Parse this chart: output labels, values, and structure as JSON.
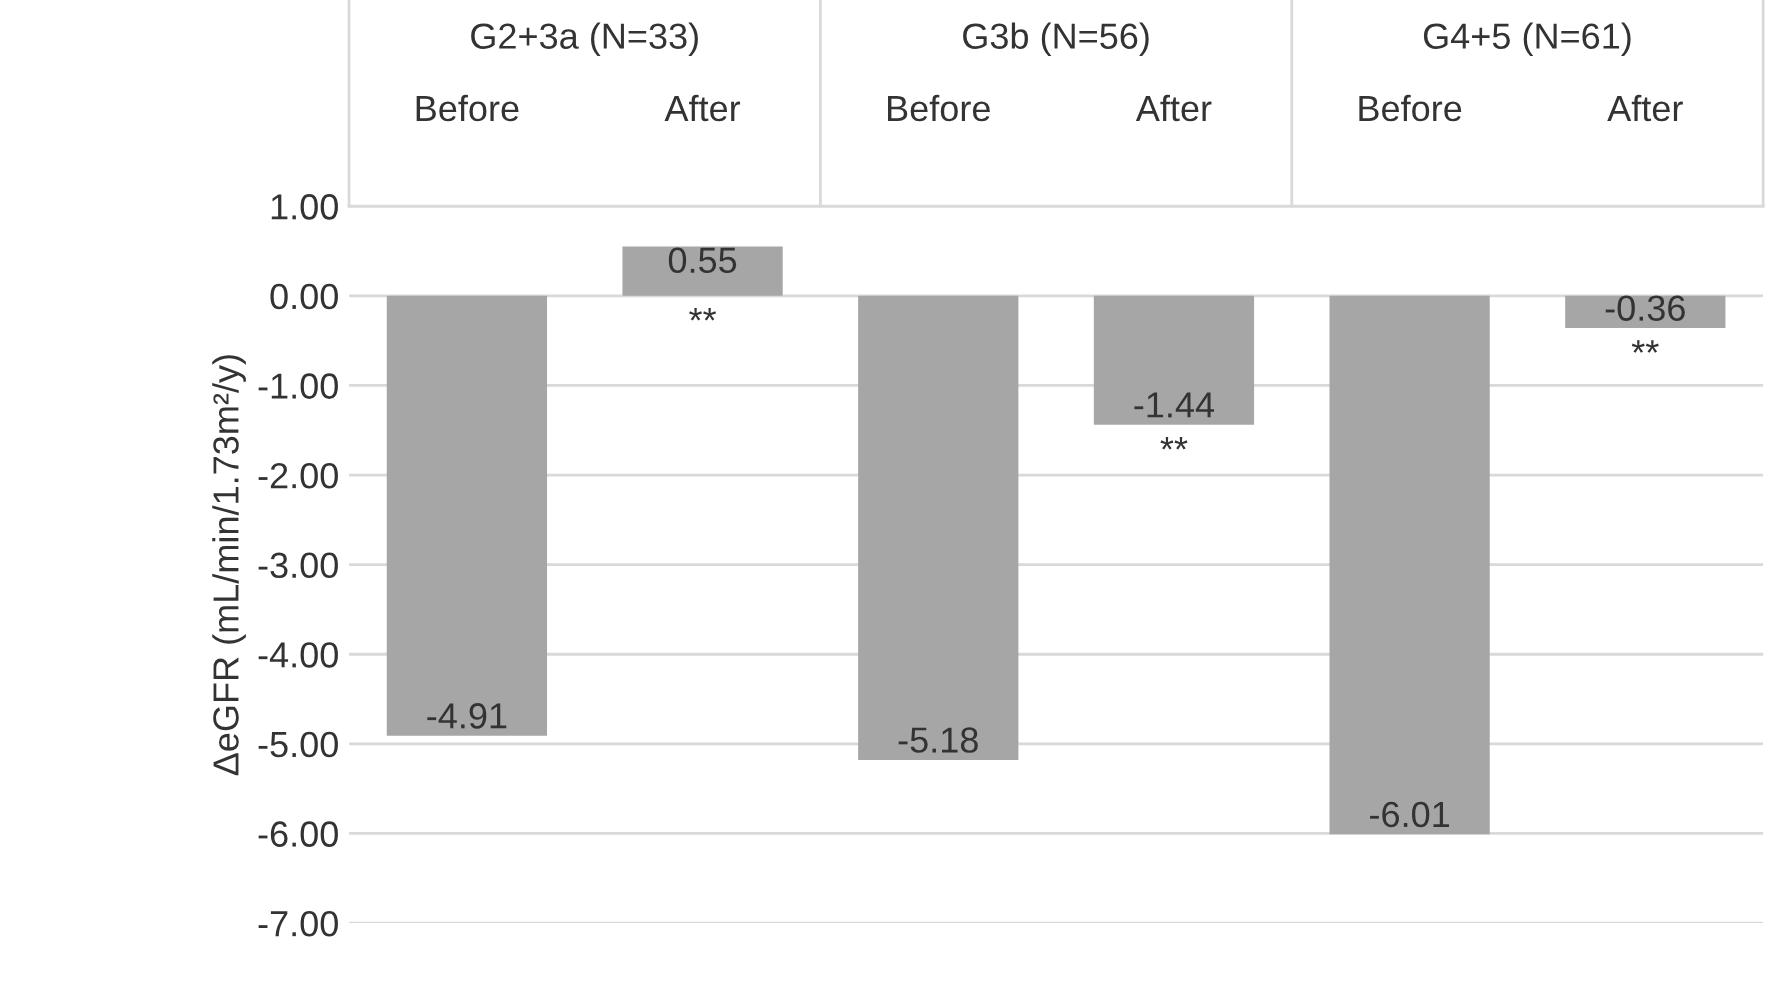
{
  "chart_data": {
    "type": "bar",
    "categories": [
      "Before",
      "After",
      "Before",
      "After",
      "Before",
      "After"
    ],
    "values": [
      -4.91,
      0.55,
      -5.18,
      -1.44,
      -6.01,
      -0.36
    ],
    "color": "#a6a6a6",
    "ylabel": "ΔeGFR (mL/min/1.73m²/y)",
    "ylim": [
      -7,
      1
    ],
    "yticks": [
      {
        "value": 1,
        "label": "1.00"
      },
      {
        "value": 0,
        "label": "0.00"
      },
      {
        "value": -1,
        "label": "-1.00"
      },
      {
        "value": -2,
        "label": "-2.00"
      },
      {
        "value": -3,
        "label": "-3.00"
      },
      {
        "value": -4,
        "label": "-4.00"
      },
      {
        "value": -5,
        "label": "-5.00"
      },
      {
        "value": -6,
        "label": "-6.00"
      },
      {
        "value": -7,
        "label": "-7.00"
      }
    ],
    "grid": "y",
    "data_labels": true,
    "annotations": [
      "G2+3a (N=33)",
      "G3b (N=56)",
      "G4+5 (N=61)",
      "**",
      "**",
      "**"
    ]
  }
}
